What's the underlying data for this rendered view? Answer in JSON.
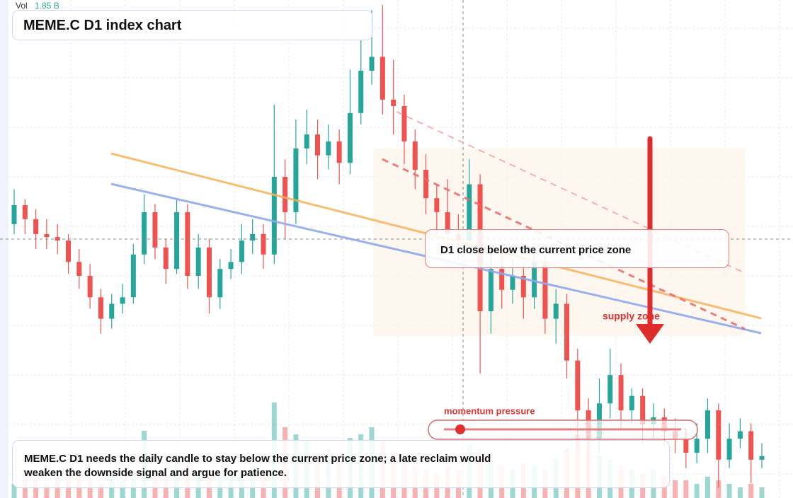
{
  "chart_data": {
    "type": "candlestick",
    "title": "MEME.C D1 index chart",
    "volume_caption": "Vol",
    "volume_label": "1.85 B",
    "up_color": "#26a69a",
    "down_color": "#ef5350",
    "ylim": [
      0,
      100
    ],
    "vlim": [
      0,
      5
    ],
    "candles": [
      [
        55,
        62,
        53,
        58.8
      ],
      [
        58.8,
        60,
        53,
        56
      ],
      [
        56,
        58,
        50,
        53
      ],
      [
        53,
        56,
        50,
        52.4
      ],
      [
        52.4,
        55,
        49,
        51.7
      ],
      [
        51.7,
        53,
        45,
        47.4
      ],
      [
        47.4,
        50,
        42,
        44.6
      ],
      [
        44.6,
        47,
        38,
        40.3
      ],
      [
        40.3,
        42,
        33,
        36
      ],
      [
        36,
        41,
        34,
        39
      ],
      [
        39,
        43,
        37,
        40.3
      ],
      [
        40.3,
        51,
        39,
        48.9
      ],
      [
        48.9,
        61,
        47,
        57.4
      ],
      [
        57.4,
        59,
        48,
        50.3
      ],
      [
        50.3,
        52,
        43,
        46
      ],
      [
        46,
        60,
        45,
        57.4
      ],
      [
        57.4,
        59,
        42,
        44.6
      ],
      [
        44.6,
        53,
        42,
        50.3
      ],
      [
        50.3,
        52,
        37,
        40.3
      ],
      [
        40.3,
        48,
        38,
        46
      ],
      [
        46,
        50,
        44,
        47.4
      ],
      [
        47.4,
        55,
        45,
        51.7
      ],
      [
        51.7,
        56,
        49,
        53
      ],
      [
        53,
        55,
        46,
        48.9
      ],
      [
        48.9,
        79,
        47,
        64.5
      ],
      [
        64.5,
        68,
        52,
        57.4
      ],
      [
        57.4,
        76,
        55,
        70.2
      ],
      [
        70.2,
        78,
        67,
        73
      ],
      [
        73,
        76,
        64,
        68.8
      ],
      [
        68.8,
        75,
        66,
        71.6
      ],
      [
        71.6,
        74,
        63,
        67.3
      ],
      [
        67.3,
        86,
        65,
        77.3
      ],
      [
        77.3,
        92,
        75,
        85.8
      ],
      [
        85.8,
        98,
        83,
        88.6
      ],
      [
        88.6,
        99,
        77,
        80
      ],
      [
        80,
        88,
        73,
        78.7
      ],
      [
        78.7,
        81,
        67,
        71.6
      ],
      [
        71.6,
        74,
        62,
        65.9
      ],
      [
        65.9,
        69,
        57,
        60.2
      ],
      [
        60.2,
        63,
        53,
        57.4
      ],
      [
        57.4,
        64,
        50,
        53
      ],
      [
        53,
        57,
        48,
        51.7
      ],
      [
        51.7,
        68,
        50,
        63
      ],
      [
        63,
        65,
        25,
        37.5
      ],
      [
        37.5,
        49,
        33,
        46
      ],
      [
        46,
        49,
        38,
        41.8
      ],
      [
        41.8,
        48,
        39,
        44.6
      ],
      [
        44.6,
        47,
        36,
        40.3
      ],
      [
        40.3,
        50,
        38,
        47.4
      ],
      [
        47.4,
        49,
        33,
        36
      ],
      [
        36,
        42,
        31,
        39
      ],
      [
        39,
        41,
        24,
        27.6
      ],
      [
        27.6,
        30,
        10,
        17.6
      ],
      [
        17.6,
        20,
        2,
        11.9
      ],
      [
        11.9,
        24,
        9,
        19
      ],
      [
        19,
        30,
        16,
        24.7
      ],
      [
        24.7,
        27,
        14,
        17.6
      ],
      [
        17.6,
        22,
        15,
        20.5
      ],
      [
        20.5,
        22,
        11,
        14.8
      ],
      [
        14.8,
        19,
        12,
        16.2
      ],
      [
        16.2,
        18,
        10,
        13.4
      ],
      [
        13.4,
        16,
        9,
        11.9
      ],
      [
        11.9,
        14,
        6,
        9.1
      ],
      [
        9.1,
        15,
        7,
        11.9
      ],
      [
        11.9,
        20,
        9,
        17.6
      ],
      [
        17.6,
        19,
        2,
        7.7
      ],
      [
        7.7,
        15,
        6,
        11.9
      ],
      [
        11.9,
        16,
        10,
        13.4
      ],
      [
        13.4,
        15,
        3,
        7.7
      ],
      [
        7.7,
        11,
        6,
        8.4
      ]
    ],
    "volume": [
      0.4,
      0.5,
      0.6,
      0.4,
      0.5,
      0.6,
      0.7,
      0.5,
      0.4,
      0.6,
      0.5,
      0.7,
      1.9,
      0.8,
      0.6,
      1.1,
      0.9,
      0.6,
      0.8,
      0.5,
      0.6,
      0.7,
      0.9,
      0.8,
      2.7,
      2.0,
      1.8,
      1.6,
      1.2,
      1.4,
      1.0,
      1.7,
      1.8,
      2.0,
      1.6,
      1.3,
      1.0,
      0.9,
      0.8,
      0.7,
      0.9,
      0.8,
      1.5,
      1.4,
      1.0,
      0.9,
      0.8,
      1.0,
      0.9,
      0.8,
      1.1,
      1.4,
      1.8,
      1.6,
      1.2,
      1.1,
      0.9,
      0.8,
      0.7,
      0.8,
      0.6,
      0.5,
      0.5,
      0.4,
      0.6,
      0.5,
      0.4,
      0.3,
      0.4,
      0.3
    ],
    "annotation": "D1 close below the current price zone",
    "zone_label": "supply zone",
    "momentum_label": "momentum pressure",
    "note": "MEME.C D1 needs the daily candle to stay below the current price zone; a late reclaim would weaken the downside signal and argue for patience."
  }
}
